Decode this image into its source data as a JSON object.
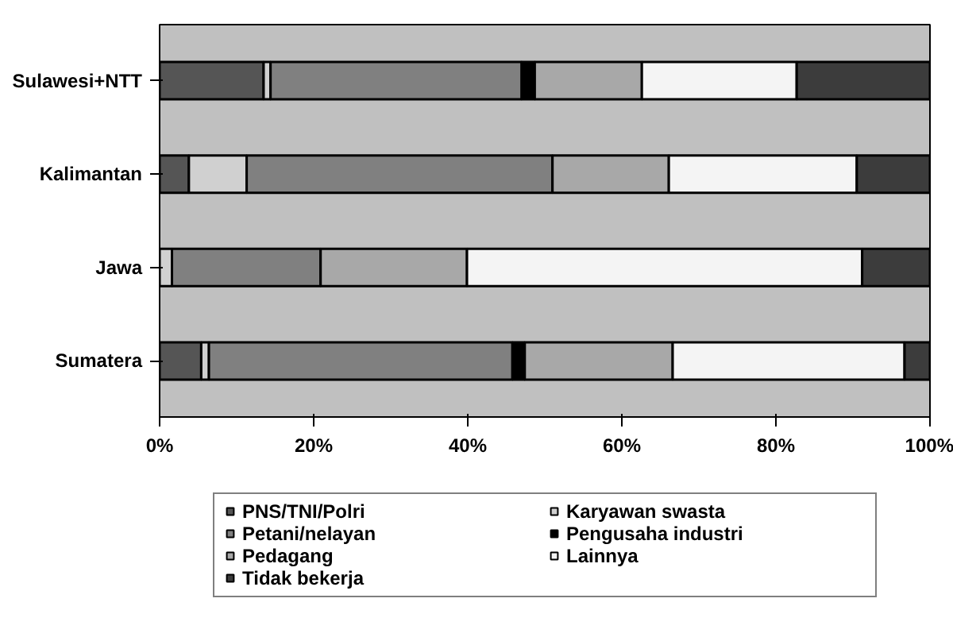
{
  "chart_data": {
    "type": "bar",
    "orientation": "horizontal",
    "stacked": true,
    "categories": [
      "Sulawesi+NTT",
      "Kalimantan",
      "Jawa",
      "Sumatera"
    ],
    "series": [
      {
        "name": "PNS/TNI/Polri",
        "color": "#555555",
        "values": [
          13.5,
          3.8,
          0,
          5.4
        ]
      },
      {
        "name": "Karyawan swasta",
        "color": "#d0d0d0",
        "values": [
          0.9,
          7.5,
          1.6,
          1.0
        ]
      },
      {
        "name": "Petani/nelayan",
        "color": "#808080",
        "values": [
          32.6,
          39.7,
          19.3,
          39.4
        ]
      },
      {
        "name": "Pengusaha industri",
        "color": "#000000",
        "values": [
          1.7,
          0,
          0,
          1.6
        ]
      },
      {
        "name": "Pedagang",
        "color": "#a8a8a8",
        "values": [
          13.9,
          15.1,
          19.0,
          19.2
        ]
      },
      {
        "name": "Lainnya",
        "color": "#f4f4f4",
        "values": [
          20.1,
          24.4,
          51.3,
          30.1
        ]
      },
      {
        "name": "Tidak bekerja",
        "color": "#3c3c3c",
        "values": [
          17.3,
          9.5,
          8.8,
          3.3
        ]
      }
    ],
    "xlim": [
      0,
      100
    ],
    "xticks": [
      {
        "value": 0,
        "label": "0%"
      },
      {
        "value": 20,
        "label": "20%"
      },
      {
        "value": 40,
        "label": "40%"
      },
      {
        "value": 60,
        "label": "60%"
      },
      {
        "value": 80,
        "label": "80%"
      },
      {
        "value": 100,
        "label": "100%"
      }
    ],
    "grid": false,
    "legend": "bottom"
  }
}
